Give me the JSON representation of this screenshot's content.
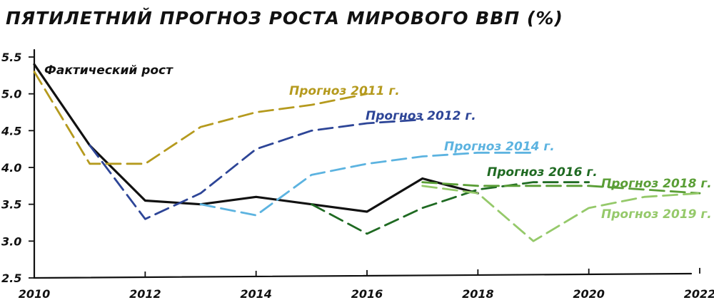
{
  "chart_data": {
    "type": "line",
    "title": "ПЯТИЛЕТНИЙ ПРОГНОЗ РОСТА МИРОВОГО ВВП (%)",
    "xlabel": "",
    "ylabel": "",
    "xlim": [
      2010,
      2022
    ],
    "ylim": [
      2.5,
      5.5
    ],
    "x_ticks": [
      "2010",
      "2012",
      "2014",
      "2016",
      "2018",
      "2020",
      "2022"
    ],
    "y_ticks": [
      "2.5",
      "3.0",
      "3.5",
      "4.0",
      "4.5",
      "5.0",
      "5.5"
    ],
    "grid": false,
    "series": [
      {
        "name": "Фактический рост",
        "style": "solid",
        "color": "#111111",
        "points": [
          [
            2010,
            5.4
          ],
          [
            2011,
            4.3
          ],
          [
            2012,
            3.55
          ],
          [
            2013,
            3.5
          ],
          [
            2014,
            3.6
          ],
          [
            2015,
            3.5
          ],
          [
            2016,
            3.4
          ],
          [
            2017,
            3.85
          ],
          [
            2018,
            3.65
          ]
        ]
      },
      {
        "name": "Прогноз 2011 г.",
        "style": "dashed",
        "color": "#b59a1e",
        "points": [
          [
            2010,
            5.3
          ],
          [
            2011,
            4.05
          ],
          [
            2012,
            4.05
          ],
          [
            2013,
            4.55
          ],
          [
            2014,
            4.75
          ],
          [
            2015,
            4.85
          ],
          [
            2016,
            5.0
          ]
        ]
      },
      {
        "name": "Прогноз 2012 г.",
        "style": "dashed",
        "color": "#2d4597",
        "points": [
          [
            2011,
            4.3
          ],
          [
            2012,
            3.3
          ],
          [
            2013,
            3.65
          ],
          [
            2014,
            4.25
          ],
          [
            2015,
            4.5
          ],
          [
            2016,
            4.6
          ],
          [
            2017,
            4.65
          ]
        ]
      },
      {
        "name": "Прогноз 2014 г.",
        "style": "dashed",
        "color": "#5cb3e0",
        "points": [
          [
            2013,
            3.5
          ],
          [
            2014,
            3.35
          ],
          [
            2015,
            3.9
          ],
          [
            2016,
            4.05
          ],
          [
            2017,
            4.15
          ],
          [
            2018,
            4.2
          ],
          [
            2019,
            4.2
          ]
        ]
      },
      {
        "name": "Прогноз 2016 г.",
        "style": "dashed",
        "color": "#1f6a22",
        "points": [
          [
            2015,
            3.5
          ],
          [
            2016,
            3.1
          ],
          [
            2017,
            3.45
          ],
          [
            2018,
            3.7
          ],
          [
            2019,
            3.8
          ],
          [
            2020,
            3.8
          ]
        ]
      },
      {
        "name": "Прогноз 2018 г.",
        "style": "dashed",
        "color": "#5a9e36",
        "points": [
          [
            2017,
            3.8
          ],
          [
            2018,
            3.75
          ],
          [
            2019,
            3.75
          ],
          [
            2020,
            3.75
          ],
          [
            2021,
            3.7
          ],
          [
            2022,
            3.65
          ]
        ]
      },
      {
        "name": "Прогноз 2019 г.",
        "style": "dashed",
        "color": "#95c96a",
        "points": [
          [
            2017,
            3.75
          ],
          [
            2018,
            3.65
          ],
          [
            2019,
            3.0
          ],
          [
            2020,
            3.45
          ],
          [
            2021,
            3.6
          ],
          [
            2022,
            3.65
          ]
        ]
      }
    ]
  }
}
